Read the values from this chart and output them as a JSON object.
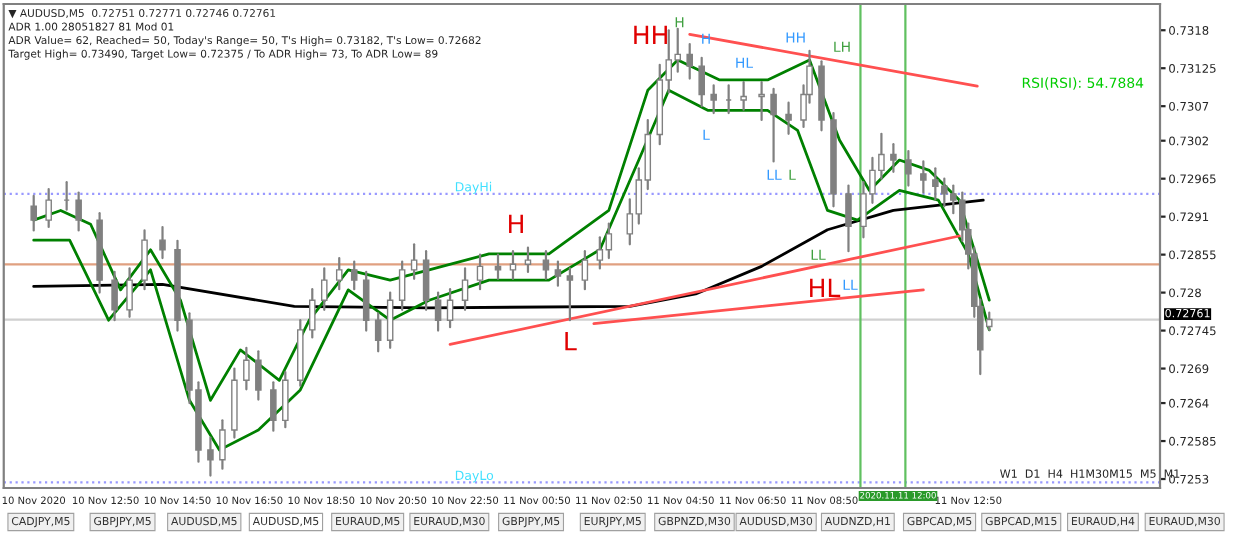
{
  "chart_data": {
    "type": "candlestick",
    "xlim": [
      "2020-11-10T10:00",
      "2020-11-11T18:10"
    ],
    "ylim": [
      0.72517,
      0.73218
    ],
    "xticks": [
      {
        "value": "2020-11-10T10:50",
        "label": "10 Nov 2020"
      },
      {
        "value": "2020-11-10T12:50",
        "label": "10 Nov 12:50"
      },
      {
        "value": "2020-11-10T14:50",
        "label": "10 Nov 14:50"
      },
      {
        "value": "2020-11-10T16:50",
        "label": "10 Nov 16:50"
      },
      {
        "value": "2020-11-10T18:50",
        "label": "10 Nov 18:50"
      },
      {
        "value": "2020-11-10T20:50",
        "label": "10 Nov 20:50"
      },
      {
        "value": "2020-11-10T22:50",
        "label": "10 Nov 22:50"
      },
      {
        "value": "2020-11-11T00:50",
        "label": "11 Nov 00:50"
      },
      {
        "value": "2020-11-11T02:50",
        "label": "11 Nov 02:50"
      },
      {
        "value": "2020-11-11T04:50",
        "label": "11 Nov 04:50"
      },
      {
        "value": "2020-11-11T06:50",
        "label": "11 Nov 06:50"
      },
      {
        "value": "2020-11-11T08:50",
        "label": "11 Nov 08:50"
      },
      {
        "value": "2020-11-11T12:50",
        "label": "11 Nov 12:50"
      }
    ],
    "yticks": [
      0.7318,
      0.73125,
      0.7307,
      0.7302,
      0.72965,
      0.7291,
      0.72855,
      0.728,
      0.72745,
      0.7269,
      0.7264,
      0.72585,
      0.7253
    ],
    "grid": false,
    "marker": "none",
    "line_style": "solid",
    "color": "#808080",
    "x": [
      "2020-11-10T10:50",
      "2020-11-10T11:15",
      "2020-11-10T11:45",
      "2020-11-10T12:05",
      "2020-11-10T12:40",
      "2020-11-10T13:05",
      "2020-11-10T13:30",
      "2020-11-10T13:55",
      "2020-11-10T14:25",
      "2020-11-10T14:50",
      "2020-11-10T15:10",
      "2020-11-10T15:25",
      "2020-11-10T15:45",
      "2020-11-10T16:05",
      "2020-11-10T16:25",
      "2020-11-10T16:45",
      "2020-11-10T17:05",
      "2020-11-10T17:30",
      "2020-11-10T17:50",
      "2020-11-10T18:15",
      "2020-11-10T18:35",
      "2020-11-10T18:55",
      "2020-11-10T19:20",
      "2020-11-10T19:45",
      "2020-11-10T20:05",
      "2020-11-10T20:25",
      "2020-11-10T20:45",
      "2020-11-10T21:05",
      "2020-11-10T21:25",
      "2020-11-10T21:45",
      "2020-11-10T22:05",
      "2020-11-10T22:25",
      "2020-11-10T22:50",
      "2020-11-10T23:15",
      "2020-11-10T23:45",
      "2020-11-11T00:10",
      "2020-11-11T00:35",
      "2020-11-11T01:05",
      "2020-11-11T01:25",
      "2020-11-11T01:45",
      "2020-11-11T02:10",
      "2020-11-11T02:35",
      "2020-11-11T02:50",
      "2020-11-11T03:25",
      "2020-11-11T03:40",
      "2020-11-11T03:55",
      "2020-11-11T04:15",
      "2020-11-11T04:30",
      "2020-11-11T04:45",
      "2020-11-11T05:05",
      "2020-11-11T05:25",
      "2020-11-11T05:45",
      "2020-11-11T06:10",
      "2020-11-11T06:35",
      "2020-11-11T07:05",
      "2020-11-11T07:25",
      "2020-11-11T07:50",
      "2020-11-11T08:15",
      "2020-11-11T08:25",
      "2020-11-11T08:45",
      "2020-11-11T09:05",
      "2020-11-11T09:30",
      "2020-11-11T09:55",
      "2020-11-11T10:10",
      "2020-11-11T10:25",
      "2020-11-11T10:45",
      "2020-11-11T11:10",
      "2020-11-11T11:35",
      "2020-11-11T11:55",
      "2020-11-11T12:10",
      "2020-11-11T12:25",
      "2020-11-11T12:40",
      "2020-11-11T12:50",
      "2020-11-11T13:00",
      "2020-11-11T13:10",
      "2020-11-11T13:25"
    ],
    "ohlc": [
      [
        0.72925,
        0.7294,
        0.7289,
        0.72905
      ],
      [
        0.72905,
        0.7295,
        0.72895,
        0.72934
      ],
      [
        0.72934,
        0.7296,
        0.7292,
        0.72934
      ],
      [
        0.72934,
        0.72945,
        0.7289,
        0.72905
      ],
      [
        0.72905,
        0.72915,
        0.728,
        0.72818
      ],
      [
        0.72818,
        0.7283,
        0.7276,
        0.72775
      ],
      [
        0.72775,
        0.72835,
        0.72765,
        0.72818
      ],
      [
        0.72818,
        0.7289,
        0.72805,
        0.72876
      ],
      [
        0.72876,
        0.72895,
        0.7285,
        0.72862
      ],
      [
        0.72862,
        0.72875,
        0.72745,
        0.7276
      ],
      [
        0.7276,
        0.7277,
        0.7264,
        0.72659
      ],
      [
        0.72659,
        0.7267,
        0.72555,
        0.72572
      ],
      [
        0.72572,
        0.7259,
        0.72535,
        0.72558
      ],
      [
        0.72558,
        0.72615,
        0.72545,
        0.72601
      ],
      [
        0.72601,
        0.7269,
        0.7259,
        0.72673
      ],
      [
        0.72673,
        0.7272,
        0.7266,
        0.72702
      ],
      [
        0.72702,
        0.72715,
        0.72645,
        0.72659
      ],
      [
        0.72659,
        0.7267,
        0.726,
        0.72615
      ],
      [
        0.72615,
        0.72685,
        0.72605,
        0.72673
      ],
      [
        0.72673,
        0.7276,
        0.72665,
        0.72746
      ],
      [
        0.72746,
        0.72805,
        0.72735,
        0.72789
      ],
      [
        0.72789,
        0.72835,
        0.72775,
        0.72818
      ],
      [
        0.72818,
        0.7285,
        0.72805,
        0.72833
      ],
      [
        0.72833,
        0.72845,
        0.72805,
        0.72818
      ],
      [
        0.72818,
        0.7283,
        0.72745,
        0.7276
      ],
      [
        0.7276,
        0.7277,
        0.72715,
        0.72731
      ],
      [
        0.72731,
        0.728,
        0.7272,
        0.72789
      ],
      [
        0.72789,
        0.72845,
        0.72775,
        0.72833
      ],
      [
        0.72833,
        0.7287,
        0.7282,
        0.72847
      ],
      [
        0.72847,
        0.7286,
        0.72775,
        0.72789
      ],
      [
        0.72789,
        0.728,
        0.72745,
        0.7276
      ],
      [
        0.7276,
        0.72805,
        0.7275,
        0.72789
      ],
      [
        0.72789,
        0.72835,
        0.72775,
        0.72818
      ],
      [
        0.72818,
        0.72855,
        0.72805,
        0.72838
      ],
      [
        0.72838,
        0.72855,
        0.7282,
        0.72833
      ],
      [
        0.72833,
        0.7286,
        0.7282,
        0.72841
      ],
      [
        0.72841,
        0.72865,
        0.7283,
        0.72847
      ],
      [
        0.72847,
        0.7286,
        0.7282,
        0.72833
      ],
      [
        0.72833,
        0.72845,
        0.7281,
        0.72824
      ],
      [
        0.72824,
        0.72835,
        0.7276,
        0.72818
      ],
      [
        0.72818,
        0.7286,
        0.72805,
        0.72847
      ],
      [
        0.72847,
        0.7288,
        0.72835,
        0.72862
      ],
      [
        0.72862,
        0.729,
        0.7285,
        0.72885
      ],
      [
        0.72885,
        0.72935,
        0.7287,
        0.72914
      ],
      [
        0.72914,
        0.7298,
        0.729,
        0.72963
      ],
      [
        0.72963,
        0.7305,
        0.7295,
        0.73029
      ],
      [
        0.73029,
        0.7313,
        0.73015,
        0.73108
      ],
      [
        0.73108,
        0.7318,
        0.7309,
        0.73137
      ],
      [
        0.73137,
        0.73182,
        0.7312,
        0.73145
      ],
      [
        0.73145,
        0.7316,
        0.7311,
        0.73128
      ],
      [
        0.73128,
        0.7314,
        0.7307,
        0.73087
      ],
      [
        0.73087,
        0.731,
        0.7306,
        0.73079
      ],
      [
        0.73079,
        0.731,
        0.7306,
        0.73079
      ],
      [
        0.73079,
        0.73105,
        0.73065,
        0.73084
      ],
      [
        0.73084,
        0.73105,
        0.7305,
        0.73087
      ],
      [
        0.73087,
        0.73095,
        0.7299,
        0.73058
      ],
      [
        0.73058,
        0.73075,
        0.7303,
        0.7305
      ],
      [
        0.7305,
        0.731,
        0.7304,
        0.73087
      ],
      [
        0.73087,
        0.7315,
        0.73075,
        0.73128
      ],
      [
        0.73128,
        0.73135,
        0.73035,
        0.7305
      ],
      [
        0.7305,
        0.7306,
        0.72925,
        0.72943
      ],
      [
        0.72943,
        0.72955,
        0.7286,
        0.72896
      ],
      [
        0.72896,
        0.7296,
        0.7288,
        0.72943
      ],
      [
        0.72943,
        0.72995,
        0.7293,
        0.72977
      ],
      [
        0.72977,
        0.7303,
        0.72965,
        0.73
      ],
      [
        0.73,
        0.73015,
        0.72975,
        0.72992
      ],
      [
        0.72992,
        0.73005,
        0.72955,
        0.72972
      ],
      [
        0.72972,
        0.7299,
        0.72945,
        0.72963
      ],
      [
        0.72963,
        0.7298,
        0.72935,
        0.72954
      ],
      [
        0.72954,
        0.72965,
        0.72925,
        0.72943
      ],
      [
        0.72943,
        0.72955,
        0.72915,
        0.72934
      ],
      [
        0.72934,
        0.72945,
        0.72875,
        0.72891
      ],
      [
        0.72891,
        0.729,
        0.72835,
        0.72856
      ],
      [
        0.72856,
        0.72865,
        0.72765,
        0.7278
      ],
      [
        0.7278,
        0.7279,
        0.72682,
        0.72717
      ],
      [
        0.72751,
        0.72771,
        0.72746,
        0.72761
      ]
    ],
    "series": [
      {
        "type": "line",
        "color": "#000000",
        "x": [
          "2020-11-10T10:50",
          "2020-11-10T14:25",
          "2020-11-10T18:05",
          "2020-11-10T21:50",
          "2020-11-11T03:25",
          "2020-11-11T05:15",
          "2020-11-11T07:05",
          "2020-11-11T08:55",
          "2020-11-11T10:45",
          "2020-11-11T13:15"
        ],
        "values": [
          0.72809,
          0.72812,
          0.7278,
          0.72778,
          0.7278,
          0.72798,
          0.72838,
          0.72891,
          0.72919,
          0.72934
        ]
      },
      {
        "type": "line",
        "color": "#008000",
        "x": [
          "2020-11-10T10:50",
          "2020-11-10T11:35",
          "2020-11-10T12:25",
          "2020-11-10T13:15",
          "2020-11-10T14:05",
          "2020-11-10T14:55",
          "2020-11-10T15:45",
          "2020-11-10T16:35",
          "2020-11-10T17:40",
          "2020-11-10T18:30",
          "2020-11-10T19:35",
          "2020-11-10T20:45",
          "2020-11-10T21:50",
          "2020-11-10T23:30",
          "2020-11-11T01:10",
          "2020-11-11T02:50",
          "2020-11-11T03:55",
          "2020-11-11T04:45",
          "2020-11-11T05:55",
          "2020-11-11T07:15",
          "2020-11-11T08:25",
          "2020-11-11T09:15",
          "2020-11-11T10:05",
          "2020-11-11T10:55",
          "2020-11-11T11:45",
          "2020-11-11T12:35",
          "2020-11-11T13:25"
        ],
        "values": [
          0.72905,
          0.72919,
          0.72899,
          0.72804,
          0.72862,
          0.72789,
          0.72644,
          0.72717,
          0.72673,
          0.7276,
          0.72833,
          0.72818,
          0.72833,
          0.72856,
          0.72856,
          0.72919,
          0.73093,
          0.73137,
          0.73108,
          0.73108,
          0.73137,
          0.73021,
          0.72948,
          0.72992,
          0.72977,
          0.72934,
          0.72789
        ]
      },
      {
        "type": "line",
        "color": "#008000",
        "x": [
          "2020-11-10T10:50",
          "2020-11-10T11:50",
          "2020-11-10T12:55",
          "2020-11-10T14:05",
          "2020-11-10T15:10",
          "2020-11-10T16:00",
          "2020-11-10T17:05",
          "2020-11-10T18:15",
          "2020-11-10T19:35",
          "2020-11-10T20:45",
          "2020-11-10T21:50",
          "2020-11-10T23:30",
          "2020-11-11T01:10",
          "2020-11-11T02:35",
          "2020-11-11T03:40",
          "2020-11-11T04:30",
          "2020-11-11T05:35",
          "2020-11-11T07:15",
          "2020-11-11T08:05",
          "2020-11-11T08:55",
          "2020-11-11T09:45",
          "2020-11-11T10:55",
          "2020-11-11T12:00",
          "2020-11-11T12:50",
          "2020-11-11T13:25"
        ],
        "values": [
          0.72876,
          0.72876,
          0.7276,
          0.72833,
          0.72644,
          0.72572,
          0.72601,
          0.72659,
          0.72804,
          0.7276,
          0.72789,
          0.72818,
          0.72818,
          0.72862,
          0.72992,
          0.73093,
          0.73064,
          0.73064,
          0.73035,
          0.72919,
          0.72905,
          0.72948,
          0.72934,
          0.72856,
          0.72746
        ]
      },
      {
        "type": "line",
        "color": "#ff5050",
        "x": [
          "2020-11-11T05:05",
          "2020-11-11T13:05"
        ],
        "values": [
          0.73174,
          0.73099
        ]
      },
      {
        "type": "line",
        "color": "#ff5050",
        "x": [
          "2020-11-10T22:25",
          "2020-11-11T12:35"
        ],
        "values": [
          0.72725,
          0.72882
        ]
      },
      {
        "type": "line",
        "color": "#ff5050",
        "x": [
          "2020-11-11T02:25",
          "2020-11-11T11:35"
        ],
        "values": [
          0.72755,
          0.72804
        ]
      }
    ],
    "ref_lines": [
      {
        "axis": "y",
        "value": 0.72841,
        "color": "#e0a080",
        "line_style": "solid"
      },
      {
        "axis": "y",
        "value": 0.72761,
        "label": "0.72761",
        "color": "#d0d0d0",
        "line_style": "solid"
      },
      {
        "axis": "y",
        "value": 0.72943,
        "label": "DayHi",
        "color": "#9999ff",
        "line_style": "dotted"
      },
      {
        "axis": "y",
        "value": 0.72525,
        "label": "DayLo",
        "color": "#9999ff",
        "line_style": "dotted"
      },
      {
        "axis": "x",
        "value": "2020-11-11T09:50",
        "color": "#60c060",
        "line_style": "solid"
      },
      {
        "axis": "x",
        "value": "2020-11-11T11:05",
        "color": "#60c060",
        "line_style": "solid"
      }
    ],
    "annotations": [
      "▼ AUDUSD,M5  0.72751 0.72771 0.72746 0.72761",
      "ADR 1.00 28051827 81 Mod 01",
      "ADR Value= 62, Reached= 50, Today's Range= 50, T's High= 0.73182, T's Low= 0.72682",
      "Target High= 0.73490, Target Low= 0.72375 / To ADR High= 73, To ADR Low= 89",
      {
        "text": "HH",
        "x": "2020-11-11T04:45",
        "y": 0.73182
      },
      "H",
      {
        "text": "L",
        "x": "2020-11-11T01:45",
        "y": 0.7276
      },
      "HL",
      {
        "text": "H",
        "x": "2020-11-11T04:30",
        "y": 0.7318
      },
      "H",
      "HL",
      "L",
      {
        "text": "HH",
        "x": "2020-11-11T08:25",
        "y": 0.7315
      },
      "LH",
      "LL",
      "L",
      "LL",
      "LL",
      "RSI(RSI): 54.7884",
      "W1  D1  H4  H1M30M15  M5  M1",
      "2020.11.11 12:00",
      "CADJPY,M5",
      "GBPJPY,M5",
      "AUDUSD,M5",
      "AUDUSD,M5",
      "EURAUD,M5",
      "EURAUD,M30",
      "GBPJPY,M5",
      "EURJPY,M5",
      "GBPNZD,M30",
      "AUDUSD,M30",
      "AUDNZD,H1",
      "GBPCAD,M5",
      "GBPCAD,M15",
      "EURAUD,H4",
      "EURAUD,M30"
    ]
  }
}
